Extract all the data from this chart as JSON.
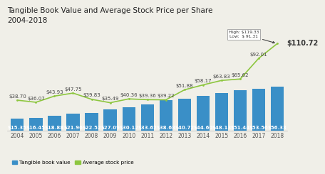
{
  "title_line1": "Tangible Book Value and Average Stock Price per Share",
  "title_line2": "2004-2018",
  "years": [
    2004,
    2005,
    2006,
    2007,
    2008,
    2009,
    2010,
    2011,
    2012,
    2013,
    2014,
    2015,
    2016,
    2017,
    2018
  ],
  "book_values": [
    15.35,
    16.45,
    18.88,
    21.96,
    22.52,
    27.09,
    30.12,
    33.62,
    38.68,
    40.72,
    44.6,
    48.13,
    51.44,
    53.56,
    56.33
  ],
  "stock_prices": [
    38.7,
    36.07,
    43.93,
    47.75,
    39.83,
    35.49,
    40.36,
    39.36,
    39.22,
    51.88,
    58.17,
    63.83,
    65.62,
    92.01,
    110.72
  ],
  "bar_color": "#3A8FC7",
  "line_color": "#8DC63F",
  "bg_color": "#F0EFE8",
  "annotation_box_text": "High: $119.33\nLow:  $ 91.31",
  "last_price_label": "$110.72",
  "legend_bar": "Tangible book value",
  "legend_line": "Average stock price",
  "title_fontsize": 7.5,
  "label_fontsize": 5.0,
  "tick_fontsize": 5.5,
  "ylim_max": 130
}
